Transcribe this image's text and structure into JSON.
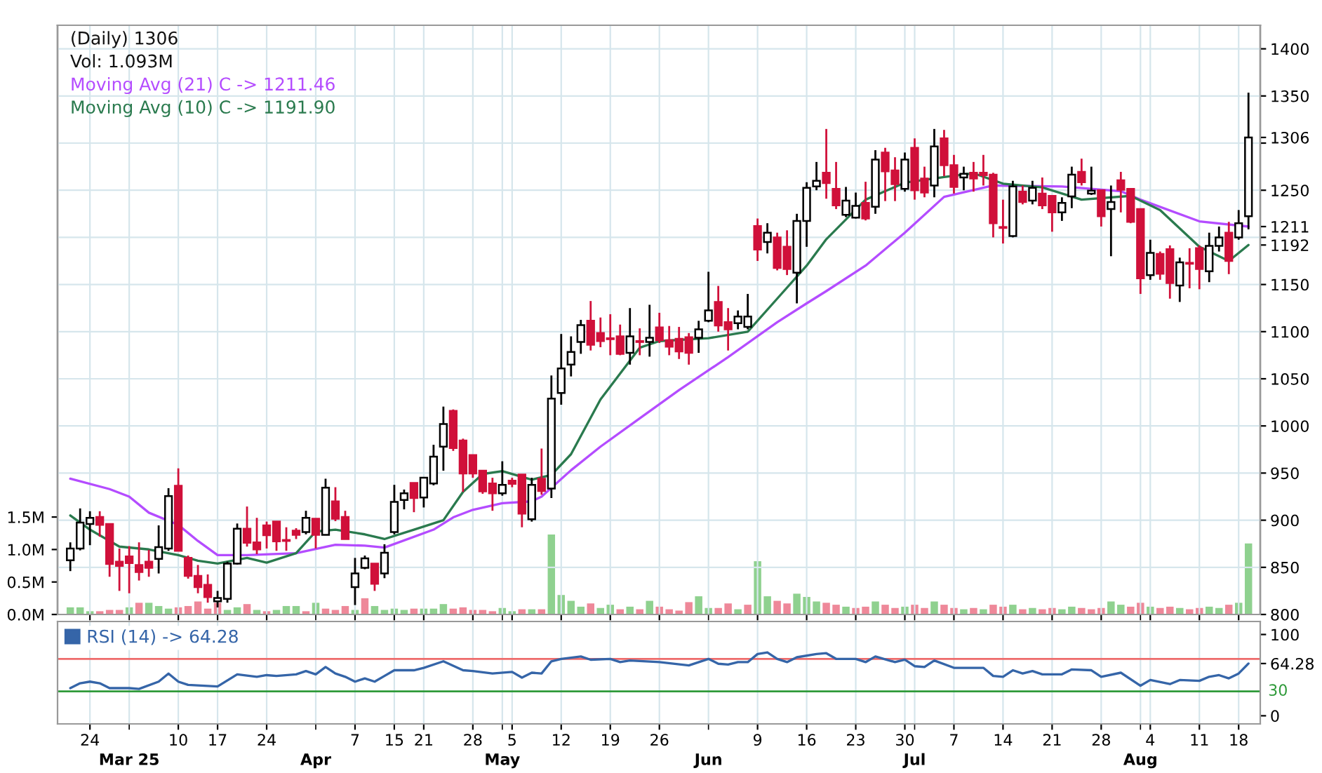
{
  "chart_data": [
    {
      "type": "candlestick",
      "title": "(Daily) 1306",
      "annotations": [
        "Vol: 1.093M"
      ],
      "categories": [
        null,
        null,
        "24",
        null,
        null,
        null,
        null,
        null,
        null,
        null,
        null,
        "10",
        null,
        null,
        null,
        "17",
        null,
        null,
        null,
        null,
        "24",
        null,
        null,
        null,
        null,
        null,
        null,
        null,
        null,
        "7",
        null,
        null,
        null,
        "15",
        null,
        null,
        "21",
        null,
        null,
        null,
        null,
        "28",
        null,
        null,
        null,
        "5",
        null,
        null,
        null,
        null,
        "12",
        null,
        null,
        null,
        null,
        "19",
        null,
        null,
        null,
        null,
        "26",
        null,
        null,
        null,
        null,
        null,
        null,
        null,
        null,
        null,
        "9",
        null,
        null,
        null,
        null,
        "16",
        null,
        null,
        null,
        null,
        "23",
        null,
        null,
        null,
        null,
        "30",
        null,
        null,
        null,
        null,
        "7",
        null,
        null,
        null,
        null,
        "14",
        null,
        null,
        null,
        null,
        "21",
        null,
        null,
        null,
        null,
        "28",
        null,
        null,
        null,
        null,
        "4",
        null,
        null,
        null,
        null,
        "11",
        null,
        null,
        null,
        "18",
        null
      ],
      "ohlc": [
        [
          857.5,
          876.5,
          846,
          870
        ],
        [
          870,
          912.5,
          868,
          897.5
        ],
        [
          896,
          909.5,
          873.5,
          902.5
        ],
        [
          903.5,
          909.5,
          882.5,
          895
        ],
        [
          896,
          896,
          840,
          853.5
        ],
        [
          856,
          870,
          825,
          851.5
        ],
        [
          861.5,
          872.5,
          822.5,
          854.5
        ],
        [
          852.5,
          876.5,
          836,
          845
        ],
        [
          856,
          868.5,
          840,
          849.5
        ],
        [
          859,
          894.5,
          843.5,
          871.5
        ],
        [
          870,
          934,
          867.5,
          925.5
        ],
        [
          936.5,
          955,
          867.5,
          867.5
        ],
        [
          860,
          862.5,
          838,
          841
        ],
        [
          841,
          852.5,
          822.5,
          829
        ],
        [
          831.5,
          842.5,
          812.5,
          818.5
        ],
        [
          814,
          825,
          807.5,
          817.5
        ],
        [
          816.5,
          856,
          812.5,
          854
        ],
        [
          854,
          896.5,
          853,
          891
        ],
        [
          891,
          914.5,
          872,
          876
        ],
        [
          876.5,
          902.5,
          864,
          869
        ],
        [
          894.5,
          898.5,
          870,
          884
        ],
        [
          898.5,
          898.5,
          867.5,
          877.5
        ],
        [
          879,
          892.5,
          867.5,
          878
        ],
        [
          889,
          891.5,
          880,
          884.5
        ],
        [
          887.5,
          910,
          885,
          902.5
        ],
        [
          901.5,
          901.5,
          870,
          884.5
        ],
        [
          884.5,
          944,
          884,
          934.5
        ],
        [
          920,
          935,
          899,
          901.5
        ],
        [
          903.5,
          910,
          880,
          880
        ],
        [
          829,
          860,
          810,
          843.5
        ],
        [
          849.5,
          862.5,
          848,
          859.5
        ],
        [
          854,
          854,
          825,
          832.5
        ],
        [
          843.5,
          874.5,
          838.5,
          865.5
        ],
        [
          887.5,
          937.5,
          885,
          919.5
        ],
        [
          921.5,
          932.5,
          911.5,
          928.5
        ],
        [
          939.5,
          939.5,
          908.5,
          923.5
        ],
        [
          924,
          945,
          913.5,
          945
        ],
        [
          939,
          980,
          937,
          967.5
        ],
        [
          978,
          1020.5,
          952.5,
          1002
        ],
        [
          1016,
          1017.5,
          973.5,
          976.5
        ],
        [
          984.5,
          986.5,
          930,
          949.5
        ],
        [
          969,
          969,
          945,
          949.5
        ],
        [
          952.5,
          952.5,
          928,
          930.5
        ],
        [
          939,
          945,
          910,
          928.5
        ],
        [
          928.5,
          962.5,
          926,
          937.5
        ],
        [
          942,
          945,
          935,
          938.5
        ],
        [
          948.5,
          948.5,
          892.5,
          907
        ],
        [
          901,
          945,
          898.5,
          937.5
        ],
        [
          944,
          976,
          927,
          931
        ],
        [
          933.5,
          1053.5,
          923.5,
          1029
        ],
        [
          1035,
          1097.5,
          1022.5,
          1061
        ],
        [
          1065,
          1095,
          1052.5,
          1078.5
        ],
        [
          1089,
          1112.5,
          1076.5,
          1107
        ],
        [
          1111.5,
          1132.5,
          1080,
          1086
        ],
        [
          1098.5,
          1115,
          1083.5,
          1090
        ],
        [
          1093,
          1118.5,
          1075,
          1092
        ],
        [
          1095,
          1107.5,
          1075,
          1076.5
        ],
        [
          1077.5,
          1125,
          1065,
          1095
        ],
        [
          1090,
          1103.5,
          1075,
          1089
        ],
        [
          1089,
          1128.5,
          1073.5,
          1093.5
        ],
        [
          1104.5,
          1120,
          1088,
          1091
        ],
        [
          1091,
          1106,
          1075,
          1084
        ],
        [
          1092.5,
          1105,
          1071,
          1079
        ],
        [
          1094,
          1098.5,
          1065,
          1077.5
        ],
        [
          1093.5,
          1111.5,
          1077.5,
          1102.5
        ],
        [
          1111.5,
          1163.5,
          1110,
          1122.5
        ],
        [
          1131.5,
          1148.5,
          1100,
          1106.5
        ],
        [
          1110,
          1125,
          1080,
          1102.5
        ],
        [
          1109,
          1122.5,
          1102.5,
          1116
        ],
        [
          1105,
          1140,
          1102.5,
          1116
        ],
        [
          1212,
          1220,
          1175,
          1187
        ],
        [
          1195,
          1215,
          1183,
          1205
        ],
        [
          1200,
          1205,
          1165,
          1167.5
        ],
        [
          1190,
          1207.5,
          1160,
          1166.5
        ],
        [
          1162.5,
          1225,
          1130,
          1217.5
        ],
        [
          1217.5,
          1258.5,
          1190,
          1252.5
        ],
        [
          1254,
          1280,
          1250,
          1260
        ],
        [
          1268.5,
          1315,
          1241,
          1257.5
        ],
        [
          1251.5,
          1280,
          1230,
          1234
        ],
        [
          1224,
          1253.5,
          1221.5,
          1239
        ],
        [
          1221,
          1247.5,
          1220,
          1233.5
        ],
        [
          1236.5,
          1259,
          1218,
          1220
        ],
        [
          1232.5,
          1292.5,
          1225,
          1282.5
        ],
        [
          1290,
          1295,
          1238.5,
          1270
        ],
        [
          1271,
          1285,
          1238.5,
          1256.5
        ],
        [
          1251.5,
          1290,
          1248.5,
          1282.5
        ],
        [
          1295,
          1305,
          1240,
          1250
        ],
        [
          1262.5,
          1275,
          1242.5,
          1247.5
        ],
        [
          1255,
          1315,
          1242.5,
          1296.5
        ],
        [
          1305,
          1314,
          1265,
          1276.5
        ],
        [
          1276.5,
          1287.5,
          1246.5,
          1253.5
        ],
        [
          1263.5,
          1275,
          1250,
          1267.5
        ],
        [
          1268.5,
          1280,
          1248.5,
          1262.5
        ],
        [
          1268.5,
          1287.5,
          1255,
          1266
        ],
        [
          1266.5,
          1268.5,
          1200,
          1215
        ],
        [
          1211,
          1240,
          1193.5,
          1210
        ],
        [
          1201.5,
          1260,
          1200,
          1254
        ],
        [
          1248.5,
          1255,
          1235,
          1237.5
        ],
        [
          1239,
          1260,
          1235,
          1252.5
        ],
        [
          1246.5,
          1263.5,
          1230,
          1234
        ],
        [
          1244,
          1244,
          1206,
          1226.5
        ],
        [
          1226.5,
          1242.5,
          1217.5,
          1236.5
        ],
        [
          1243.5,
          1275,
          1231,
          1266.5
        ],
        [
          1269.5,
          1283.5,
          1255,
          1258.5
        ],
        [
          1246.5,
          1275,
          1245,
          1249.5
        ],
        [
          1250,
          1250,
          1211.5,
          1222.5
        ],
        [
          1230,
          1255,
          1180,
          1237.5
        ],
        [
          1260.5,
          1269.5,
          1226.5,
          1250.5
        ],
        [
          1251.5,
          1251.5,
          1215,
          1216.5
        ],
        [
          1230,
          1230,
          1140,
          1156.5
        ],
        [
          1160,
          1197.5,
          1155,
          1183.5
        ],
        [
          1182.5,
          1185,
          1155,
          1161.5
        ],
        [
          1187.5,
          1191.5,
          1135,
          1151.5
        ],
        [
          1149,
          1178.5,
          1131.5,
          1173.5
        ],
        [
          1173,
          1188.5,
          1146,
          1172
        ],
        [
          1188.5,
          1191.5,
          1145,
          1166.5
        ],
        [
          1164,
          1205,
          1152.5,
          1191
        ],
        [
          1191,
          1211.5,
          1185,
          1200
        ],
        [
          1205,
          1216.5,
          1161,
          1175
        ],
        [
          1200,
          1229,
          1197.5,
          1215
        ],
        [
          1222.5,
          1353.5,
          1208.5,
          1306
        ]
      ],
      "series": [
        {
          "name": "Moving Avg (21) C -> 1211.46",
          "type": "line",
          "color": "#b44cff",
          "values": [
            944,
            null,
            null,
            null,
            933,
            null,
            925,
            null,
            908,
            null,
            null,
            895,
            null,
            878,
            null,
            863,
            null,
            null,
            863,
            null,
            null,
            null,
            null,
            865,
            null,
            null,
            null,
            874,
            null,
            null,
            873,
            null,
            871,
            null,
            null,
            null,
            null,
            890,
            null,
            903,
            null,
            911,
            null,
            null,
            918,
            null,
            null,
            920,
            925,
            null,
            null,
            953,
            null,
            null,
            978,
            null,
            null,
            null,
            1008,
            null,
            null,
            null,
            1038,
            null,
            null,
            null,
            null,
            1073,
            null,
            null,
            null,
            null,
            1110,
            null,
            null,
            1130,
            null,
            1143,
            null,
            null,
            null,
            1170,
            null,
            null,
            null,
            1205,
            null,
            null,
            null,
            1243,
            null,
            null,
            null,
            null,
            1255,
            null,
            null,
            null,
            null,
            null,
            null,
            1254,
            null,
            null,
            null,
            null,
            null,
            1249,
            null,
            1240,
            null,
            null,
            null,
            null,
            null,
            1217,
            null,
            null,
            null,
            null,
            1211.46
          ]
        },
        {
          "name": "Moving Avg (10) C -> 1191.90",
          "type": "line",
          "color": "#2a7a4e",
          "values": [
            905,
            null,
            890,
            null,
            null,
            872,
            null,
            null,
            869,
            null,
            null,
            863,
            null,
            857,
            null,
            854,
            null,
            null,
            860,
            null,
            855,
            null,
            null,
            865,
            null,
            888,
            null,
            890,
            null,
            null,
            885,
            null,
            880,
            null,
            null,
            890,
            null,
            null,
            900,
            null,
            930,
            null,
            949,
            null,
            952,
            null,
            null,
            943,
            null,
            948,
            null,
            970,
            null,
            null,
            1028,
            null,
            null,
            null,
            1083,
            null,
            1090,
            null,
            null,
            null,
            null,
            1093,
            null,
            null,
            null,
            1100,
            null,
            null,
            1135,
            null,
            null,
            1170,
            null,
            1198,
            null,
            null,
            null,
            1240,
            null,
            null,
            null,
            1258,
            null,
            null,
            null,
            1264,
            null,
            null,
            1268,
            null,
            null,
            1257,
            null,
            null,
            null,
            1253,
            null,
            null,
            null,
            1240,
            null,
            null,
            null,
            null,
            1244,
            null,
            null,
            1229,
            null,
            null,
            null,
            1190,
            null,
            null,
            1175,
            null,
            1191.9
          ]
        },
        {
          "type": "bar",
          "axis": "y2",
          "values": [
            0.11,
            0.11,
            0.05,
            0.05,
            0.07,
            0.07,
            0.11,
            0.18,
            0.18,
            0.13,
            0.09,
            0.11,
            0.13,
            0.2,
            0.09,
            0.18,
            0.07,
            0.11,
            0.16,
            0.07,
            0.05,
            0.07,
            0.13,
            0.13,
            0.05,
            0.18,
            0.09,
            0.07,
            0.13,
            0.07,
            0.25,
            0.13,
            0.07,
            0.09,
            0.07,
            0.09,
            0.09,
            0.09,
            0.16,
            0.09,
            0.11,
            0.07,
            0.07,
            0.05,
            0.1,
            0.05,
            0.08,
            0.08,
            0.08,
            1.23,
            0.3,
            0.21,
            0.12,
            0.17,
            0.1,
            0.15,
            0.08,
            0.12,
            0.08,
            0.21,
            0.12,
            0.08,
            0.06,
            0.19,
            0.28,
            0.1,
            0.1,
            0.17,
            0.08,
            0.15,
            0.82,
            0.28,
            0.21,
            0.17,
            0.32,
            0.27,
            0.2,
            0.18,
            0.15,
            0.12,
            0.1,
            0.12,
            0.2,
            0.15,
            0.1,
            0.12,
            0.15,
            0.1,
            0.2,
            0.15,
            0.1,
            0.08,
            0.1,
            0.08,
            0.15,
            0.12,
            0.15,
            0.08,
            0.1,
            0.08,
            0.1,
            0.08,
            0.12,
            0.1,
            0.08,
            0.1,
            0.2,
            0.15,
            0.12,
            0.18,
            0.12,
            0.1,
            0.12,
            0.1,
            0.08,
            0.1,
            0.12,
            0.1,
            0.15,
            0.18,
            1.093
          ],
          "colors": [
            "#8fd18f",
            "#8fd18f",
            "#8fd18f",
            "#ee8899",
            "#ee8899",
            "#ee8899",
            "#8fd18f",
            "#ee8899",
            "#8fd18f",
            "#8fd18f",
            "#8fd18f",
            "#ee8899",
            "#ee8899",
            "#ee8899",
            "#ee8899",
            "#ee8899",
            "#8fd18f",
            "#8fd18f",
            "#ee8899",
            "#8fd18f",
            "#ee8899",
            "#8fd18f",
            "#8fd18f",
            "#8fd18f",
            "#ee8899",
            "#8fd18f",
            "#ee8899",
            "#ee8899",
            "#ee8899",
            "#8fd18f",
            "#ee8899",
            "#8fd18f",
            "#8fd18f",
            "#8fd18f",
            "#8fd18f",
            "#ee8899",
            "#8fd18f",
            "#8fd18f",
            "#8fd18f",
            "#ee8899",
            "#ee8899",
            "#ee8899",
            "#ee8899",
            "#ee8899",
            "#8fd18f",
            "#8fd18f",
            "#ee8899",
            "#8fd18f",
            "#ee8899",
            "#8fd18f",
            "#8fd18f",
            "#8fd18f",
            "#8fd18f",
            "#ee8899",
            "#8fd18f",
            "#8fd18f",
            "#ee8899",
            "#8fd18f",
            "#ee8899",
            "#8fd18f",
            "#ee8899",
            "#ee8899",
            "#ee8899",
            "#ee8899",
            "#8fd18f",
            "#8fd18f",
            "#ee8899",
            "#ee8899",
            "#8fd18f",
            "#ee8899",
            "#8fd18f",
            "#8fd18f",
            "#ee8899",
            "#ee8899",
            "#8fd18f",
            "#8fd18f",
            "#8fd18f",
            "#ee8899",
            "#ee8899",
            "#8fd18f",
            "#ee8899",
            "#ee8899",
            "#8fd18f",
            "#ee8899",
            "#ee8899",
            "#8fd18f",
            "#ee8899",
            "#ee8899",
            "#8fd18f",
            "#ee8899",
            "#ee8899",
            "#8fd18f",
            "#ee8899",
            "#8fd18f",
            "#ee8899",
            "#ee8899",
            "#8fd18f",
            "#ee8899",
            "#8fd18f",
            "#ee8899",
            "#ee8899",
            "#8fd18f",
            "#8fd18f",
            "#ee8899",
            "#ee8899",
            "#ee8899",
            "#8fd18f",
            "#8fd18f",
            "#ee8899",
            "#ee8899",
            "#8fd18f",
            "#ee8899",
            "#ee8899",
            "#8fd18f",
            "#ee8899",
            "#ee8899",
            "#8fd18f",
            "#8fd18f",
            "#ee8899",
            "#8fd18f",
            "#8fd18f"
          ]
        }
      ],
      "ylim": [
        800,
        1425
      ],
      "yticks": [
        800,
        850,
        900,
        950,
        1000,
        1050,
        1100,
        1150,
        {
          "value": 1200,
          "label": null
        },
        1250,
        {
          "value": 1300,
          "label": null
        },
        1350,
        1400,
        1306,
        {
          "value": 1211.46,
          "label": "1211"
        },
        {
          "value": 1191.9,
          "label": "1192"
        }
      ],
      "y2lim": [
        0,
        9.07
      ],
      "y2ticks": [
        {
          "value": 0,
          "label": "0.0M"
        },
        {
          "value": 0.5,
          "label": "0.5M"
        },
        {
          "value": 1,
          "label": "1.0M"
        },
        {
          "value": 1.5,
          "label": "1.5M"
        }
      ],
      "grid": true
    },
    {
      "type": "line",
      "categories": [
        null,
        null,
        null,
        null,
        null,
        null,
        "Mar 25",
        null,
        null,
        null,
        null,
        null,
        null,
        null,
        null,
        null,
        null,
        null,
        null,
        null,
        null,
        null,
        null,
        null,
        null,
        "Apr",
        null,
        null,
        null,
        null,
        null,
        null,
        null,
        null,
        null,
        null,
        null,
        null,
        null,
        null,
        null,
        null,
        null,
        null,
        "May",
        null,
        null,
        null,
        null,
        null,
        null,
        null,
        null,
        null,
        null,
        null,
        null,
        null,
        null,
        null,
        null,
        null,
        null,
        null,
        null,
        "Jun",
        null,
        null,
        null,
        null,
        null,
        null,
        null,
        null,
        null,
        null,
        null,
        null,
        null,
        null,
        null,
        null,
        null,
        null,
        null,
        null,
        "Jul",
        null,
        null,
        null,
        null,
        null,
        null,
        null,
        null,
        null,
        null,
        null,
        null,
        null,
        null,
        null,
        null,
        null,
        null,
        null,
        null,
        null,
        null,
        "Aug",
        null,
        null,
        null,
        null,
        null,
        null,
        null,
        null,
        null,
        null,
        null
      ],
      "series": [
        {
          "name": "RSI (14) -> 64.28",
          "color": "#3565a8",
          "values": [
            34,
            40,
            42,
            40,
            34,
            null,
            34,
            33,
            null,
            42,
            52,
            42,
            38,
            null,
            null,
            36,
            null,
            51,
            null,
            48,
            50,
            49,
            null,
            51,
            55,
            51,
            60,
            52,
            48,
            42,
            46,
            42,
            49,
            56,
            null,
            56,
            59,
            null,
            67,
            null,
            56,
            55,
            null,
            52,
            null,
            54,
            47,
            53,
            52,
            67,
            70,
            null,
            73,
            69,
            null,
            70,
            66,
            68,
            null,
            null,
            66,
            null,
            null,
            62,
            null,
            70,
            64,
            63,
            66,
            66,
            76,
            78,
            70,
            66,
            72,
            null,
            76,
            77,
            70,
            null,
            70,
            66,
            73,
            null,
            66,
            69,
            61,
            60,
            68,
            null,
            59,
            null,
            59,
            59,
            49,
            48,
            56,
            52,
            55,
            51,
            null,
            51,
            57,
            null,
            56,
            48,
            null,
            53,
            null,
            37,
            44,
            null,
            39,
            44,
            null,
            43,
            48,
            50,
            46,
            52,
            64.28
          ]
        }
      ],
      "ylim": [
        -10,
        116
      ],
      "yticks": [
        0,
        100,
        64.28
      ],
      "ref_lines": [
        {
          "axis": "y",
          "value": 70,
          "color": "#ee6b6b"
        },
        {
          "axis": "y",
          "value": 30,
          "label": "30",
          "color": "#2f9a3a"
        }
      ],
      "grid": "x",
      "legend": "top left"
    }
  ]
}
